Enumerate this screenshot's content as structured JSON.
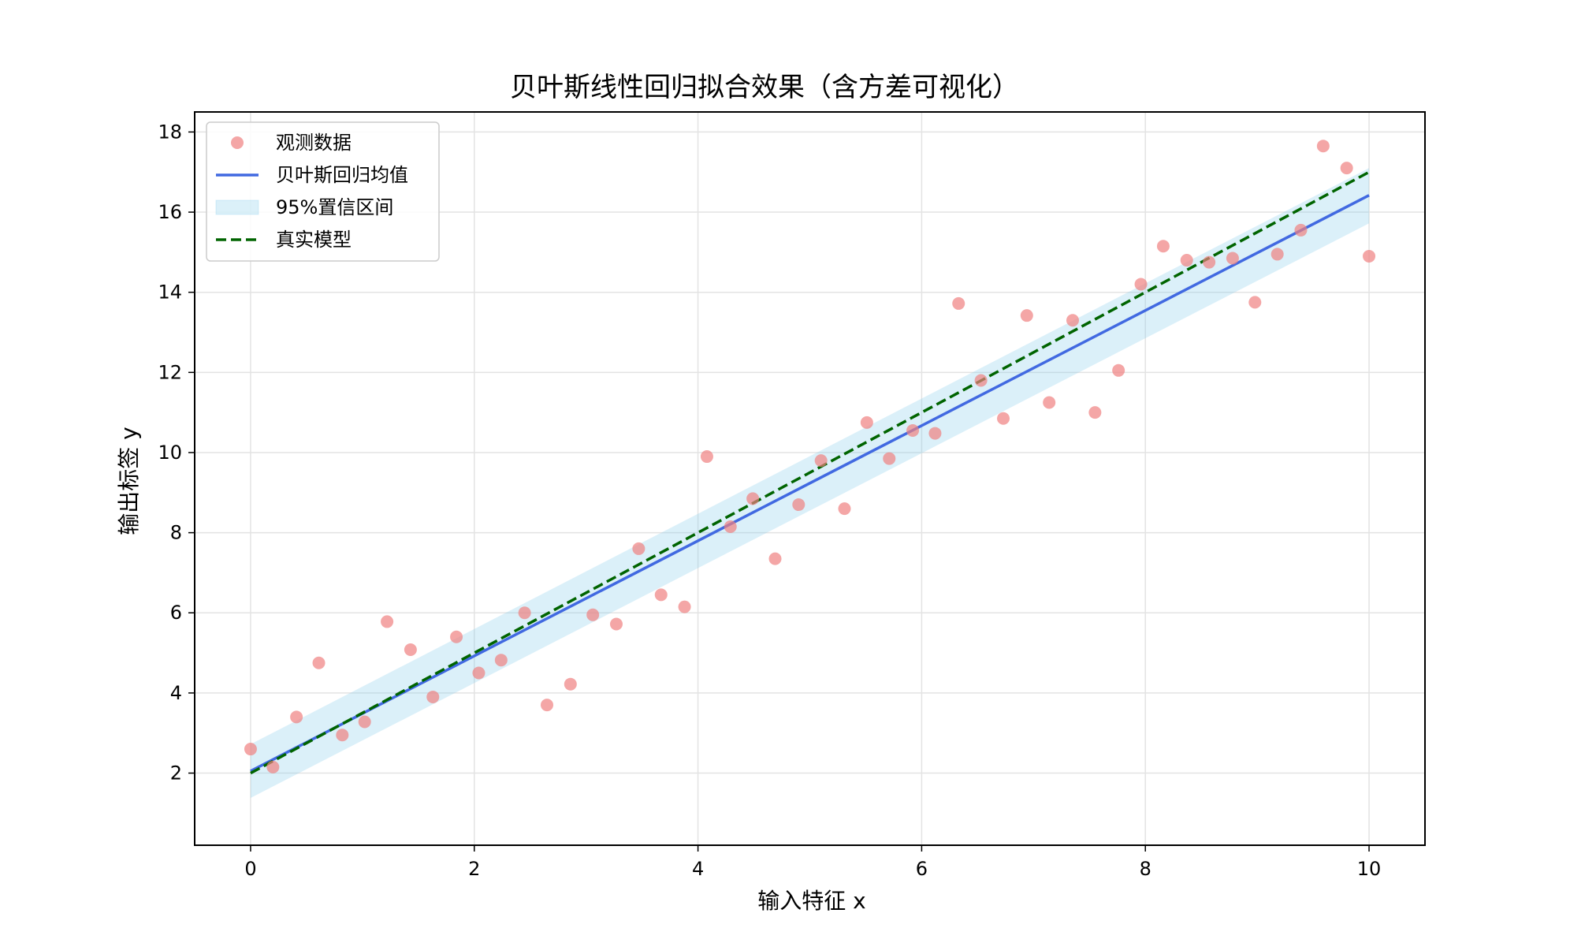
{
  "chart_data": {
    "type": "scatter",
    "title": "贝叶斯线性回归拟合效果（含方差可视化）",
    "xlabel": "输入特征 x",
    "ylabel": "输出标签 y",
    "xlim": [
      -0.5,
      10.5
    ],
    "ylim": [
      0.2,
      18.5
    ],
    "xticks": [
      0,
      2,
      4,
      6,
      8,
      10
    ],
    "yticks": [
      2,
      4,
      6,
      8,
      10,
      12,
      14,
      16,
      18
    ],
    "grid": true,
    "legend_position": "top-left",
    "series": [
      {
        "name": "观测数据",
        "kind": "scatter",
        "color": "#f08080",
        "points": [
          [
            0.0,
            2.6
          ],
          [
            0.2,
            2.15
          ],
          [
            0.41,
            3.4
          ],
          [
            0.61,
            4.75
          ],
          [
            0.82,
            2.95
          ],
          [
            1.02,
            3.28
          ],
          [
            1.22,
            5.78
          ],
          [
            1.43,
            5.08
          ],
          [
            1.63,
            3.9
          ],
          [
            1.84,
            5.4
          ],
          [
            2.04,
            4.5
          ],
          [
            2.24,
            4.82
          ],
          [
            2.45,
            6.0
          ],
          [
            2.65,
            3.7
          ],
          [
            2.86,
            4.22
          ],
          [
            3.06,
            5.95
          ],
          [
            3.27,
            5.72
          ],
          [
            3.47,
            7.6
          ],
          [
            3.67,
            6.45
          ],
          [
            3.88,
            6.15
          ],
          [
            4.08,
            9.9
          ],
          [
            4.29,
            8.15
          ],
          [
            4.49,
            8.85
          ],
          [
            4.69,
            7.35
          ],
          [
            4.9,
            8.7
          ],
          [
            5.1,
            9.8
          ],
          [
            5.31,
            8.6
          ],
          [
            5.51,
            10.75
          ],
          [
            5.71,
            9.85
          ],
          [
            5.92,
            10.55
          ],
          [
            6.12,
            10.48
          ],
          [
            6.33,
            13.72
          ],
          [
            6.53,
            11.8
          ],
          [
            6.73,
            10.85
          ],
          [
            6.94,
            13.42
          ],
          [
            7.14,
            11.25
          ],
          [
            7.35,
            13.3
          ],
          [
            7.55,
            11.0
          ],
          [
            7.76,
            12.05
          ],
          [
            7.96,
            14.2
          ],
          [
            8.16,
            15.15
          ],
          [
            8.37,
            14.8
          ],
          [
            8.57,
            14.75
          ],
          [
            8.78,
            14.85
          ],
          [
            8.98,
            13.75
          ],
          [
            9.18,
            14.95
          ],
          [
            9.39,
            15.55
          ],
          [
            9.59,
            17.65
          ],
          [
            9.8,
            17.1
          ],
          [
            10.0,
            14.9
          ]
        ]
      },
      {
        "name": "贝叶斯回归均值",
        "kind": "line",
        "color": "#4169e1",
        "x": [
          0,
          10
        ],
        "y": [
          2.05,
          16.42
        ]
      },
      {
        "name": "95%置信区间",
        "kind": "band",
        "color": "#87ceeb",
        "x": [
          0,
          10
        ],
        "lower": [
          1.38,
          15.72
        ],
        "upper": [
          2.72,
          17.1
        ]
      },
      {
        "name": "真实模型",
        "kind": "dashed-line",
        "color": "#006400",
        "x": [
          0,
          10
        ],
        "y": [
          2.0,
          17.0
        ]
      }
    ]
  }
}
